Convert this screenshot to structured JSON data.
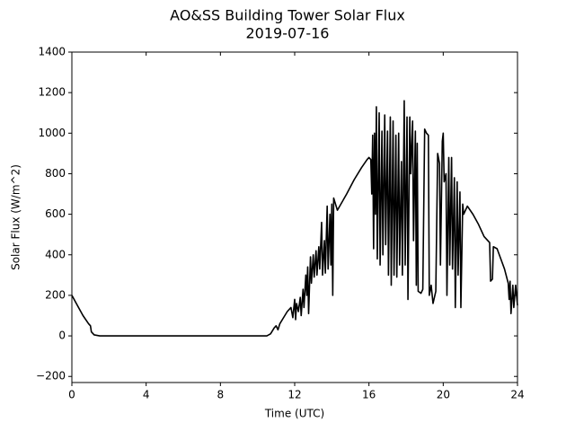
{
  "chart_data": {
    "type": "line",
    "title": "AO&SS Building Tower Solar Flux",
    "subtitle": "2019-07-16",
    "x_label": "Time (UTC)",
    "y_label": "Solar Flux (W/m^2)",
    "color": "#000000",
    "xlim": [
      0,
      24
    ],
    "xticks": [
      0,
      4,
      8,
      12,
      16,
      20,
      24
    ],
    "ylim": [
      -230,
      1400
    ],
    "yticks": [
      {
        "value": -200,
        "label": "−200"
      },
      0,
      200,
      400,
      600,
      800,
      1000,
      1200,
      1400
    ],
    "x": [
      0,
      0.3,
      0.6,
      0.9,
      1.0,
      1.05,
      1.2,
      1.5,
      4,
      8,
      10.5,
      10.7,
      10.9,
      11.0,
      11.1,
      11.2,
      11.4,
      11.6,
      11.8,
      11.9,
      12.0,
      12.05,
      12.1,
      12.2,
      12.3,
      12.35,
      12.45,
      12.5,
      12.6,
      12.65,
      12.7,
      12.75,
      12.85,
      12.9,
      13.0,
      13.05,
      13.15,
      13.2,
      13.3,
      13.35,
      13.45,
      13.5,
      13.6,
      13.65,
      13.75,
      13.8,
      13.9,
      13.95,
      14.0,
      14.05,
      14.1,
      14.3,
      14.8,
      15.2,
      15.6,
      15.9,
      16.0,
      16.1,
      16.15,
      16.2,
      16.25,
      16.3,
      16.35,
      16.4,
      16.45,
      16.55,
      16.6,
      16.7,
      16.75,
      16.85,
      16.9,
      17.0,
      17.05,
      17.15,
      17.2,
      17.3,
      17.35,
      17.45,
      17.5,
      17.6,
      17.65,
      17.75,
      17.8,
      17.9,
      17.95,
      18.05,
      18.1,
      18.2,
      18.25,
      18.35,
      18.4,
      18.5,
      18.55,
      18.6,
      18.65,
      18.8,
      18.9,
      19.0,
      19.1,
      19.2,
      19.25,
      19.35,
      19.45,
      19.6,
      19.7,
      19.8,
      19.85,
      19.95,
      20.0,
      20.05,
      20.15,
      20.2,
      20.3,
      20.35,
      20.45,
      20.5,
      20.6,
      20.65,
      20.75,
      20.8,
      20.9,
      20.95,
      21.05,
      21.1,
      21.3,
      21.6,
      21.9,
      22.2,
      22.5,
      22.55,
      22.65,
      22.7,
      22.9,
      23.1,
      23.3,
      23.5,
      23.55,
      23.6,
      23.65,
      23.75,
      23.8,
      23.9,
      24.0
    ],
    "values": [
      200,
      150,
      100,
      60,
      50,
      20,
      5,
      0,
      0,
      0,
      0,
      10,
      40,
      50,
      30,
      60,
      90,
      120,
      140,
      90,
      180,
      80,
      160,
      120,
      190,
      100,
      230,
      140,
      300,
      200,
      340,
      110,
      390,
      260,
      400,
      290,
      420,
      300,
      440,
      330,
      560,
      300,
      470,
      310,
      640,
      330,
      600,
      350,
      650,
      200,
      680,
      620,
      700,
      770,
      830,
      870,
      880,
      870,
      700,
      990,
      430,
      1000,
      600,
      1130,
      380,
      1100,
      350,
      1010,
      400,
      1090,
      450,
      1010,
      300,
      1080,
      250,
      1060,
      300,
      990,
      290,
      1000,
      350,
      860,
      300,
      1160,
      350,
      1080,
      180,
      1080,
      800,
      1060,
      470,
      1010,
      250,
      950,
      220,
      210,
      230,
      1020,
      1000,
      990,
      200,
      250,
      160,
      220,
      900,
      850,
      350,
      960,
      1000,
      760,
      800,
      200,
      880,
      350,
      880,
      330,
      780,
      140,
      760,
      300,
      710,
      140,
      650,
      600,
      640,
      600,
      550,
      490,
      460,
      270,
      280,
      440,
      430,
      380,
      330,
      260,
      180,
      270,
      110,
      250,
      140,
      250,
      150
    ]
  }
}
